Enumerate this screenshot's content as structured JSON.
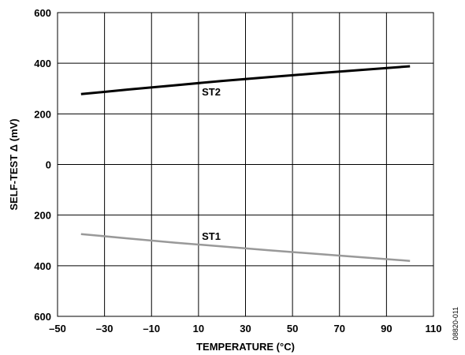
{
  "chart_data": {
    "type": "line",
    "xlabel": "TEMPERATURE (°C)",
    "ylabel": "SELF-TEST Δ (mV)",
    "xlim": [
      -50,
      110
    ],
    "ylim": [
      -600,
      600
    ],
    "x_ticks": [
      -50,
      -30,
      -10,
      10,
      30,
      50,
      70,
      90,
      110
    ],
    "x_tick_labels": [
      "–50",
      "–30",
      "–10",
      "10",
      "30",
      "50",
      "70",
      "90",
      "110"
    ],
    "y_ticks": [
      600,
      400,
      200,
      0,
      -200,
      -400,
      -600
    ],
    "y_tick_labels": [
      "600",
      "400",
      "200",
      "0",
      "200",
      "400",
      "600"
    ],
    "grid": true,
    "series": [
      {
        "name": "ST2",
        "color": "#000000",
        "x": [
          -40,
          -20,
          0,
          20,
          40,
          60,
          80,
          100
        ],
        "y": [
          278,
          296,
          313,
          330,
          345,
          360,
          374,
          388
        ]
      },
      {
        "name": "ST1",
        "color": "#999999",
        "x": [
          -40,
          -20,
          0,
          20,
          40,
          60,
          80,
          100
        ],
        "y": [
          -275,
          -292,
          -309,
          -324,
          -339,
          -353,
          -367,
          -381
        ]
      }
    ]
  },
  "figure_id": "08820-011"
}
